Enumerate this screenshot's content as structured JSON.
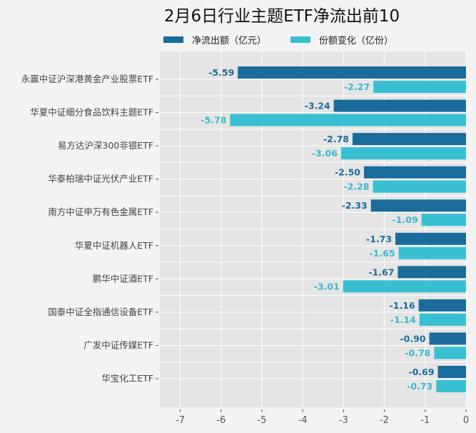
{
  "chart_data": {
    "type": "bar",
    "orientation": "horizontal",
    "title": "2月6日行业主题ETF净流出前10",
    "categories": [
      "永赢中证沪深港黄金产业股票ETF",
      "华夏中证细分食品饮料主题ETF",
      "易方达沪深300非银ETF",
      "华泰柏瑞中证光伏产业ETF",
      "南方中证申万有色金属ETF",
      "华夏中证机器人ETF",
      "鹏华中证酒ETF",
      "国泰中证全指通信设备ETF",
      "广发中证传媒ETF",
      "华宝化工ETF"
    ],
    "series": [
      {
        "name": "净流出额（亿元）",
        "color": "#1a6c9c",
        "label_color": "#1a6c9c",
        "values": [
          -5.59,
          -3.24,
          -2.78,
          -2.5,
          -2.33,
          -1.73,
          -1.67,
          -1.16,
          -0.9,
          -0.69
        ]
      },
      {
        "name": "份额变化（亿份）",
        "color": "#38c0d2",
        "label_color": "#3ab8cf",
        "values": [
          -2.27,
          -5.78,
          -3.06,
          -2.28,
          -1.09,
          -1.65,
          -3.01,
          -1.14,
          -0.78,
          -0.73
        ]
      }
    ],
    "value_labels": [
      [
        "-5.59",
        "-3.24",
        "-2.78",
        "-2.50",
        "-2.33",
        "-1.73",
        "-1.67",
        "-1.16",
        "-0.90",
        "-0.69"
      ],
      [
        "-2.27",
        "-5.78",
        "-3.06",
        "-2.28",
        "-1.09",
        "-1.65",
        "-3.01",
        "-1.14",
        "-0.78",
        "-0.73"
      ]
    ],
    "xticks": [
      -7,
      -6,
      -5,
      -4,
      -3,
      -2,
      -1,
      0
    ],
    "xtick_labels": [
      "-7",
      "-6",
      "-5",
      "-4",
      "-3",
      "-2",
      "-1",
      "0"
    ],
    "xlim": [
      -7.5,
      0
    ],
    "xlabel": "",
    "ylabel": "",
    "grid": true,
    "legend_position": "top"
  }
}
